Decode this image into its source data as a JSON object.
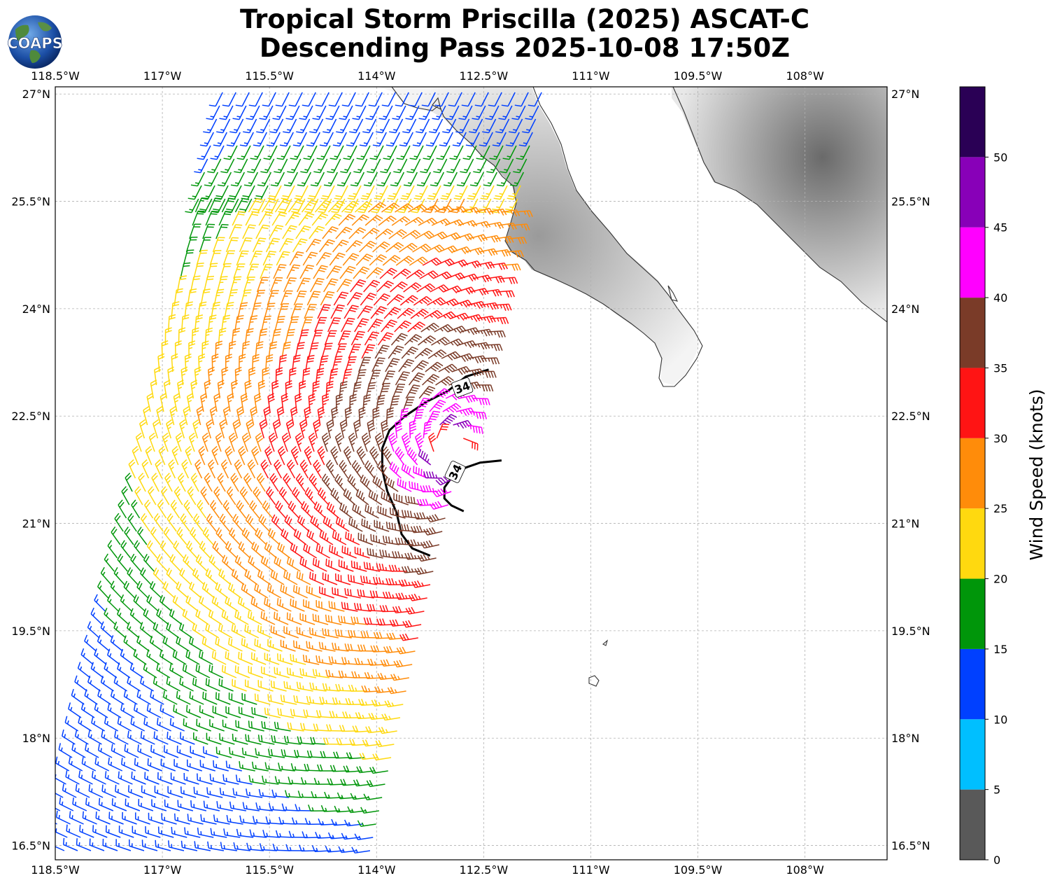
{
  "header": {
    "title_line1": "Tropical Storm Priscilla (2025) ASCAT-C",
    "title_line2": "Descending Pass 2025-10-08 17:50Z",
    "logo_text": "COAPS"
  },
  "map": {
    "lon_range": [
      -118.5,
      -106.85
    ],
    "lat_range": [
      16.3,
      27.1
    ],
    "lon_ticks": [
      {
        "value": -118.5,
        "label": "118.5°W"
      },
      {
        "value": -117.0,
        "label": "117°W"
      },
      {
        "value": -115.5,
        "label": "115.5°W"
      },
      {
        "value": -114.0,
        "label": "114°W"
      },
      {
        "value": -112.5,
        "label": "112.5°W"
      },
      {
        "value": -111.0,
        "label": "111°W"
      },
      {
        "value": -109.5,
        "label": "109.5°W"
      },
      {
        "value": -108.0,
        "label": "108°W"
      }
    ],
    "lat_ticks": [
      {
        "value": 27.0,
        "label": "27°N"
      },
      {
        "value": 25.5,
        "label": "25.5°N"
      },
      {
        "value": 24.0,
        "label": "24°N"
      },
      {
        "value": 22.5,
        "label": "22.5°N"
      },
      {
        "value": 21.0,
        "label": "21°N"
      },
      {
        "value": 19.5,
        "label": "19.5°N"
      },
      {
        "value": 18.0,
        "label": "18°N"
      },
      {
        "value": 16.5,
        "label": "16.5°N"
      }
    ],
    "gridlines": true,
    "storm_center": {
      "lon": -112.95,
      "lat": 22.0
    },
    "contour_34kt": {
      "label": "34",
      "segments": [
        [
          [
            -112.43,
            23.15
          ],
          [
            -112.75,
            23.05
          ],
          [
            -113.0,
            22.85
          ],
          [
            -113.3,
            22.7
          ],
          [
            -113.6,
            22.5
          ],
          [
            -113.82,
            22.3
          ],
          [
            -113.92,
            22.05
          ],
          [
            -113.92,
            21.75
          ],
          [
            -113.85,
            21.45
          ],
          [
            -113.72,
            21.15
          ],
          [
            -113.65,
            20.85
          ],
          [
            -113.5,
            20.65
          ],
          [
            -113.25,
            20.55
          ]
        ],
        [
          [
            -112.25,
            21.88
          ],
          [
            -112.55,
            21.85
          ],
          [
            -112.75,
            21.78
          ],
          [
            -112.92,
            21.68
          ],
          [
            -113.05,
            21.5
          ],
          [
            -113.05,
            21.35
          ],
          [
            -112.95,
            21.25
          ],
          [
            -112.78,
            21.17
          ]
        ]
      ]
    },
    "coast_note": "Baja California / mainland Mexico coastline with grayscale terrain"
  },
  "colorbar": {
    "label": "Wind Speed (knots)",
    "ticks": [
      "0",
      "5",
      "10",
      "15",
      "20",
      "25",
      "30",
      "35",
      "40",
      "45",
      "50"
    ],
    "bins": [
      {
        "from": 0,
        "to": 5,
        "color": "#595959"
      },
      {
        "from": 5,
        "to": 10,
        "color": "#00bfff"
      },
      {
        "from": 10,
        "to": 15,
        "color": "#0040ff"
      },
      {
        "from": 15,
        "to": 20,
        "color": "#00960a"
      },
      {
        "from": 20,
        "to": 25,
        "color": "#ffd90f"
      },
      {
        "from": 25,
        "to": 30,
        "color": "#ff8c0a"
      },
      {
        "from": 30,
        "to": 35,
        "color": "#ff1414"
      },
      {
        "from": 35,
        "to": 40,
        "color": "#7a3b28"
      },
      {
        "from": 40,
        "to": 45,
        "color": "#ff00ff"
      },
      {
        "from": 45,
        "to": 50,
        "color": "#8800b8"
      },
      {
        "from": 50,
        "to": 55,
        "color": "#2a0055"
      }
    ]
  }
}
